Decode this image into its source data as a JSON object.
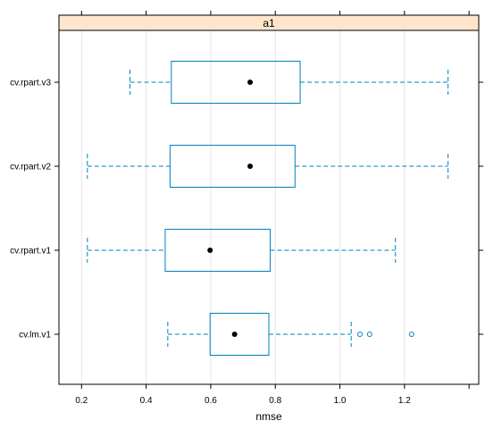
{
  "chart_data": {
    "type": "boxplot",
    "panel_title": "a1",
    "xlabel": "nmse",
    "ylabel": "",
    "xlim": [
      0.13,
      1.43
    ],
    "xticks": [
      "0.2",
      "0.4",
      "0.6",
      "0.8",
      "1.0",
      "1.2"
    ],
    "grid": "vertical",
    "categories": [
      "cv.rpart.v3",
      "cv.rpart.v2",
      "cv.rpart.v1",
      "cv.lm.v1"
    ],
    "boxes": [
      {
        "name": "cv.rpart.v3",
        "whisker_low": 0.35,
        "q1": 0.478,
        "median": 0.722,
        "q3": 0.877,
        "whisker_high": 1.335,
        "outliers": []
      },
      {
        "name": "cv.rpart.v2",
        "whisker_low": 0.218,
        "q1": 0.474,
        "median": 0.722,
        "q3": 0.861,
        "whisker_high": 1.335,
        "outliers": []
      },
      {
        "name": "cv.rpart.v1",
        "whisker_low": 0.218,
        "q1": 0.459,
        "median": 0.598,
        "q3": 0.784,
        "whisker_high": 1.172,
        "outliers": []
      },
      {
        "name": "cv.lm.v1",
        "whisker_low": 0.467,
        "q1": 0.598,
        "median": 0.674,
        "q3": 0.78,
        "whisker_high": 1.035,
        "outliers": [
          1.062,
          1.092,
          1.222
        ]
      }
    ],
    "colors": {
      "box": "#0080c0",
      "whisker": "#0080c0",
      "median_dot": "#000000",
      "strip": "#ffe5cc",
      "grid": "#e6e6e6"
    }
  }
}
